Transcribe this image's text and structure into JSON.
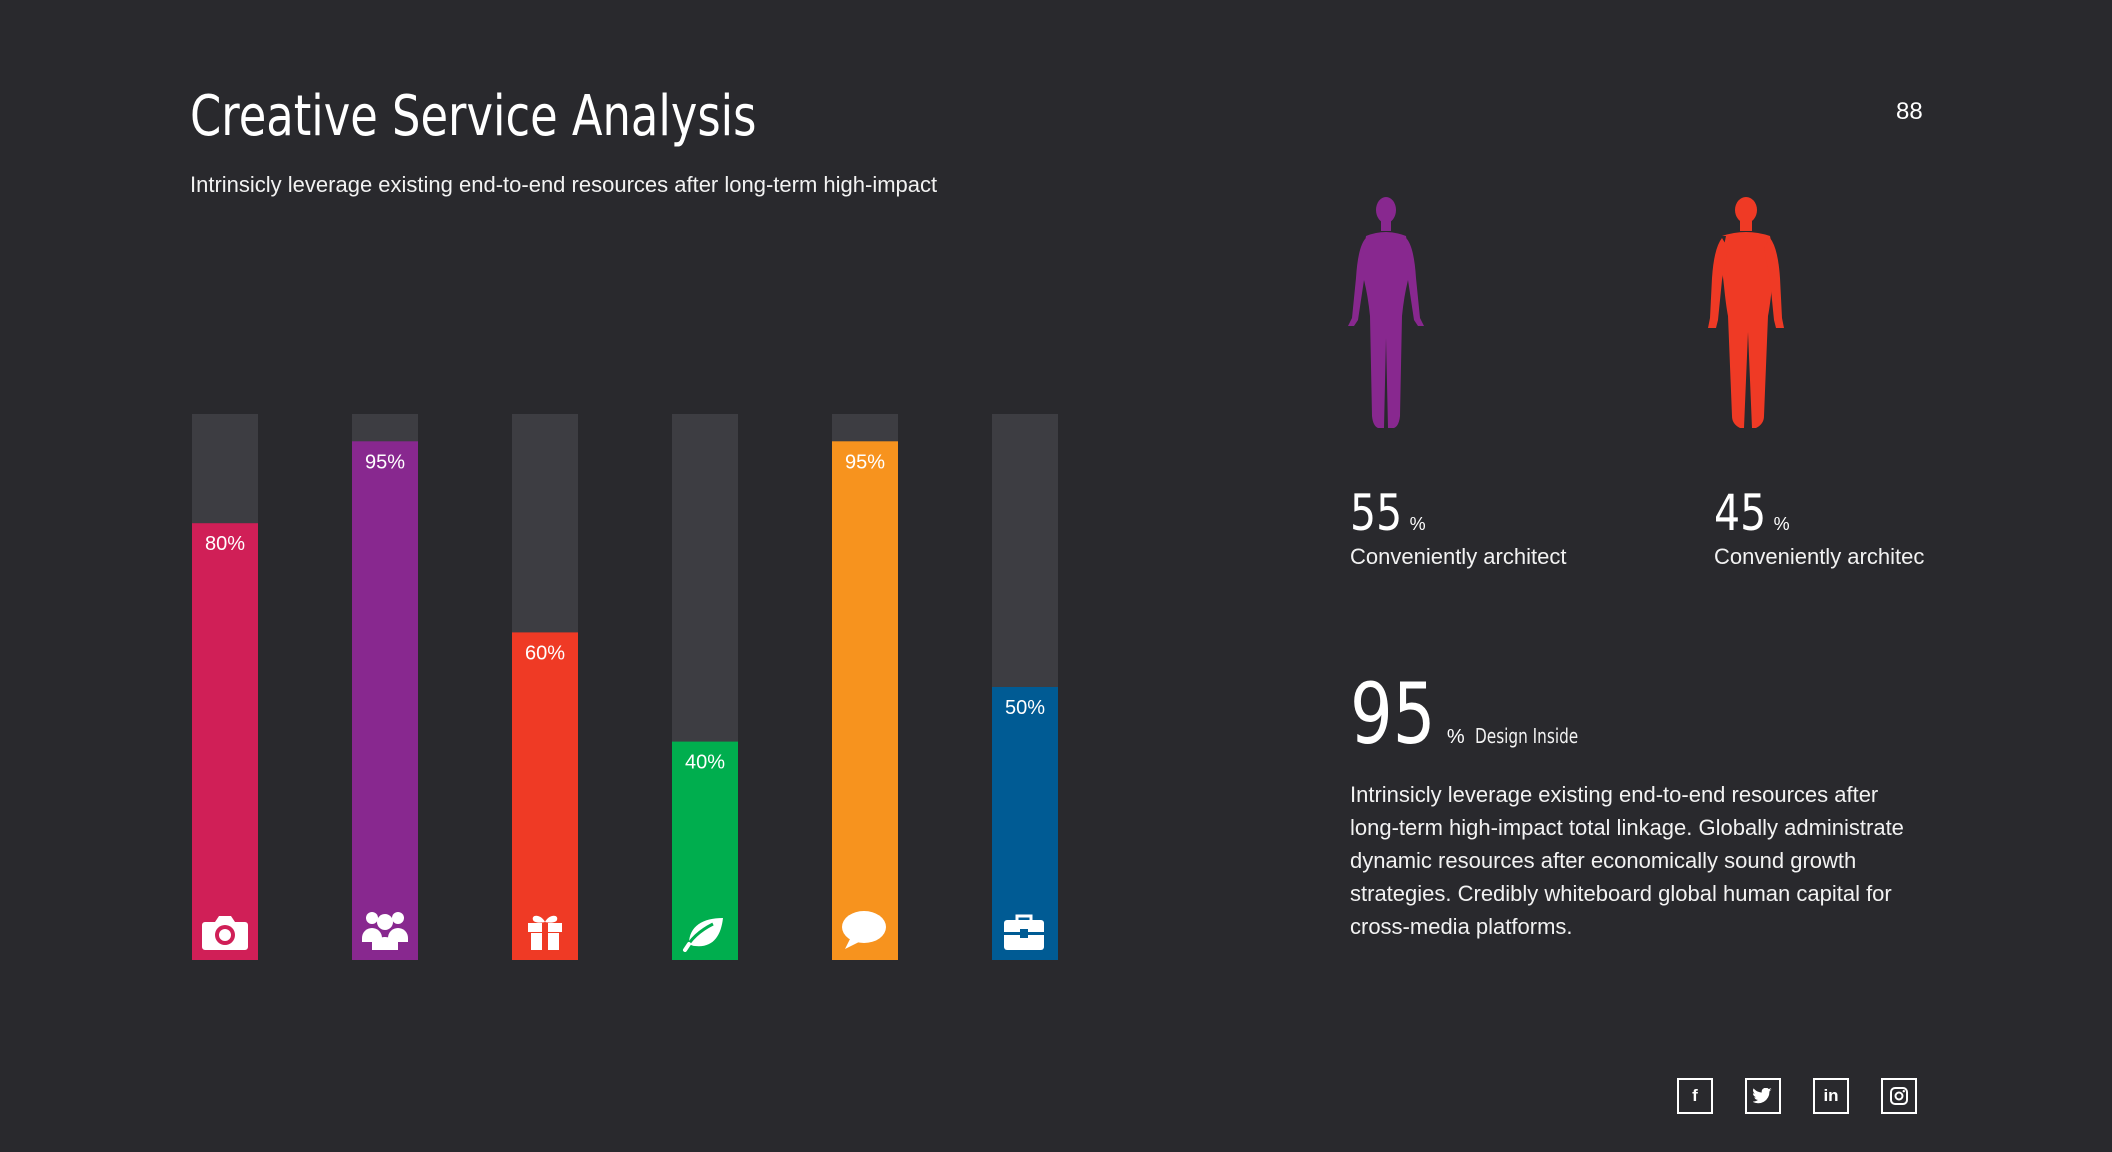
{
  "header": {
    "title": "Creative Service Analysis",
    "subtitle": "Intrinsicly leverage existing end-to-end resources after long-term high-impact",
    "page_number": "88"
  },
  "chart_data": {
    "type": "bar",
    "categories": [
      "camera",
      "team",
      "gift",
      "leaf",
      "chat",
      "briefcase"
    ],
    "values": [
      80,
      95,
      60,
      40,
      95,
      50
    ],
    "labels": [
      "80%",
      "95%",
      "60%",
      "40%",
      "95%",
      "50%"
    ],
    "ylim": [
      0,
      100
    ],
    "colors": [
      "#d01f57",
      "#88288f",
      "#ef3a25",
      "#00ae4e",
      "#f7931e",
      "#005b94"
    ],
    "track_color": "#3d3d42",
    "icons": [
      "camera-icon",
      "users-icon",
      "gift-icon",
      "leaf-icon",
      "chat-icon",
      "briefcase-icon"
    ]
  },
  "figures": {
    "female": {
      "color": "#88288f",
      "icon": "female-figure-icon"
    },
    "male": {
      "color": "#ef3a25",
      "icon": "male-figure-icon"
    }
  },
  "stats": [
    {
      "value": "55",
      "unit": "%",
      "caption": "Conveniently architect"
    },
    {
      "value": "45",
      "unit": "%",
      "caption": "Conveniently architec"
    }
  ],
  "highlight": {
    "value": "95",
    "unit": "%",
    "label": "Design Inside",
    "paragraph": "Intrinsicly leverage existing end-to-end resources after long-term high-impact total linkage. Globally administrate dynamic resources after economically sound growth strategies. Credibly whiteboard global human capital for cross-media platforms."
  },
  "social": [
    {
      "name": "facebook-icon",
      "glyph": "f"
    },
    {
      "name": "twitter-icon",
      "glyph": ""
    },
    {
      "name": "linkedin-icon",
      "glyph": "in"
    },
    {
      "name": "instagram-icon",
      "glyph": ""
    }
  ]
}
